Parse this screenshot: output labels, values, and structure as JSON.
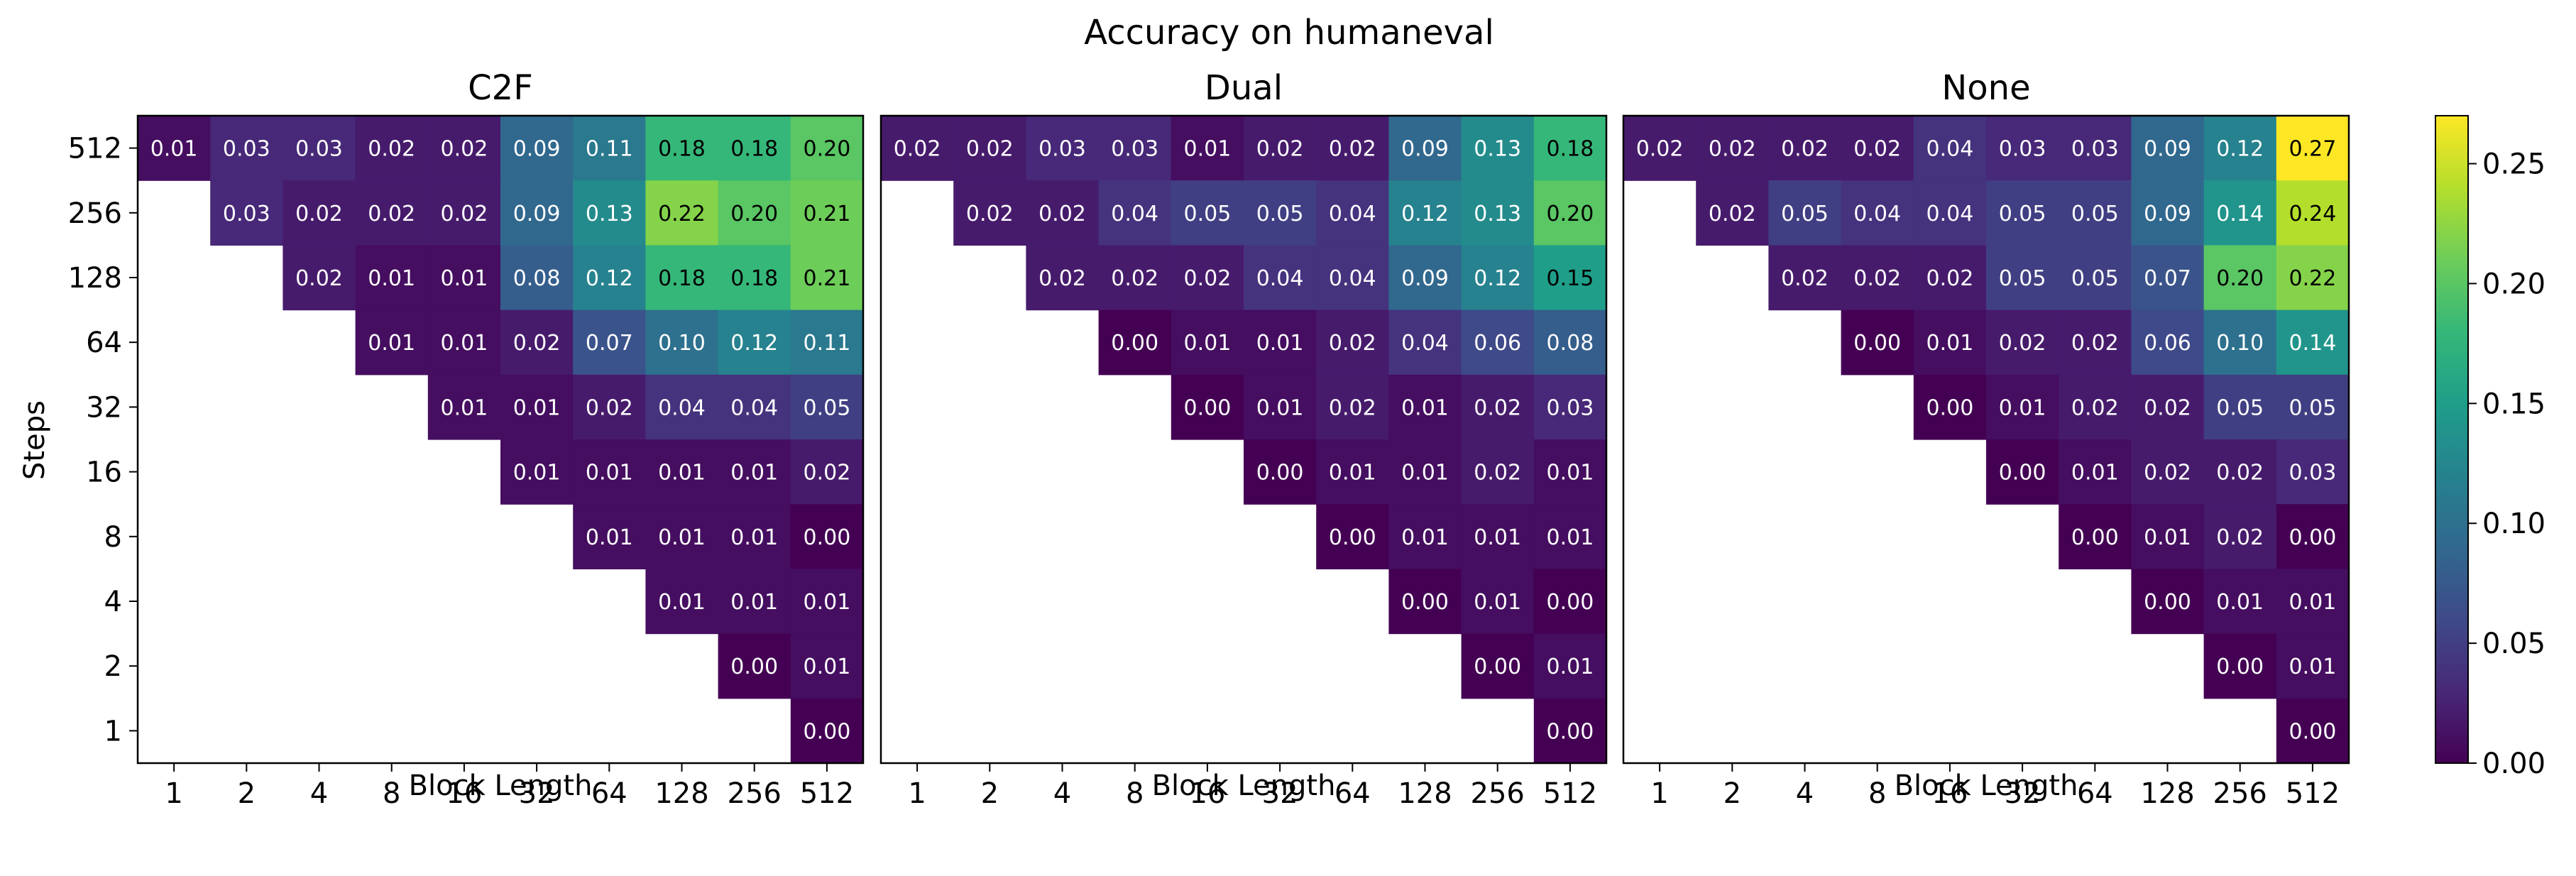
{
  "figure": {
    "title": "Accuracy on humaneval"
  },
  "chart_data": {
    "type": "heatmap",
    "title": "Accuracy on humaneval",
    "xlabel": "Block Length",
    "ylabel": "Steps",
    "x_ticks": [
      "1",
      "2",
      "4",
      "8",
      "16",
      "32",
      "64",
      "128",
      "256",
      "512"
    ],
    "y_ticks": [
      "512",
      "256",
      "128",
      "64",
      "32",
      "16",
      "8",
      "4",
      "2",
      "1"
    ],
    "colorbar": {
      "min": 0.0,
      "max": 0.27,
      "ticks": [
        "0.00",
        "0.05",
        "0.10",
        "0.15",
        "0.20",
        "0.25"
      ],
      "colormap": "viridis"
    },
    "panels": [
      {
        "name": "C2F",
        "values": [
          [
            0.01,
            0.03,
            0.03,
            0.02,
            0.02,
            0.09,
            0.11,
            0.18,
            0.18,
            0.2
          ],
          [
            null,
            0.03,
            0.02,
            0.02,
            0.02,
            0.09,
            0.13,
            0.22,
            0.2,
            0.21
          ],
          [
            null,
            null,
            0.02,
            0.01,
            0.01,
            0.08,
            0.12,
            0.18,
            0.18,
            0.21
          ],
          [
            null,
            null,
            null,
            0.01,
            0.01,
            0.02,
            0.07,
            0.1,
            0.12,
            0.11
          ],
          [
            null,
            null,
            null,
            null,
            0.01,
            0.01,
            0.02,
            0.04,
            0.04,
            0.05
          ],
          [
            null,
            null,
            null,
            null,
            null,
            0.01,
            0.01,
            0.01,
            0.01,
            0.02
          ],
          [
            null,
            null,
            null,
            null,
            null,
            null,
            0.01,
            0.01,
            0.01,
            0.0
          ],
          [
            null,
            null,
            null,
            null,
            null,
            null,
            null,
            0.01,
            0.01,
            0.01
          ],
          [
            null,
            null,
            null,
            null,
            null,
            null,
            null,
            null,
            0.0,
            0.01
          ],
          [
            null,
            null,
            null,
            null,
            null,
            null,
            null,
            null,
            null,
            0.0
          ]
        ]
      },
      {
        "name": "Dual",
        "values": [
          [
            0.02,
            0.02,
            0.03,
            0.03,
            0.01,
            0.02,
            0.02,
            0.09,
            0.13,
            0.18
          ],
          [
            null,
            0.02,
            0.02,
            0.04,
            0.05,
            0.05,
            0.04,
            0.12,
            0.13,
            0.2
          ],
          [
            null,
            null,
            0.02,
            0.02,
            0.02,
            0.04,
            0.04,
            0.09,
            0.12,
            0.15
          ],
          [
            null,
            null,
            null,
            0.0,
            0.01,
            0.01,
            0.02,
            0.04,
            0.06,
            0.08
          ],
          [
            null,
            null,
            null,
            null,
            0.0,
            0.01,
            0.02,
            0.01,
            0.02,
            0.03
          ],
          [
            null,
            null,
            null,
            null,
            null,
            0.0,
            0.01,
            0.01,
            0.02,
            0.01
          ],
          [
            null,
            null,
            null,
            null,
            null,
            null,
            0.0,
            0.01,
            0.01,
            0.01
          ],
          [
            null,
            null,
            null,
            null,
            null,
            null,
            null,
            0.0,
            0.01,
            0.0
          ],
          [
            null,
            null,
            null,
            null,
            null,
            null,
            null,
            null,
            0.0,
            0.01
          ],
          [
            null,
            null,
            null,
            null,
            null,
            null,
            null,
            null,
            null,
            0.0
          ]
        ]
      },
      {
        "name": "None",
        "values": [
          [
            0.02,
            0.02,
            0.02,
            0.02,
            0.04,
            0.03,
            0.03,
            0.09,
            0.12,
            0.27
          ],
          [
            null,
            0.02,
            0.05,
            0.04,
            0.04,
            0.05,
            0.05,
            0.09,
            0.14,
            0.24
          ],
          [
            null,
            null,
            0.02,
            0.02,
            0.02,
            0.05,
            0.05,
            0.07,
            0.2,
            0.22
          ],
          [
            null,
            null,
            null,
            0.0,
            0.01,
            0.02,
            0.02,
            0.06,
            0.1,
            0.14
          ],
          [
            null,
            null,
            null,
            null,
            0.0,
            0.01,
            0.02,
            0.02,
            0.05,
            0.05
          ],
          [
            null,
            null,
            null,
            null,
            null,
            0.0,
            0.01,
            0.02,
            0.02,
            0.03
          ],
          [
            null,
            null,
            null,
            null,
            null,
            null,
            0.0,
            0.01,
            0.02,
            0.0
          ],
          [
            null,
            null,
            null,
            null,
            null,
            null,
            null,
            0.0,
            0.01,
            0.01
          ],
          [
            null,
            null,
            null,
            null,
            null,
            null,
            null,
            null,
            0.0,
            0.01
          ],
          [
            null,
            null,
            null,
            null,
            null,
            null,
            null,
            null,
            null,
            0.0
          ]
        ]
      }
    ]
  }
}
